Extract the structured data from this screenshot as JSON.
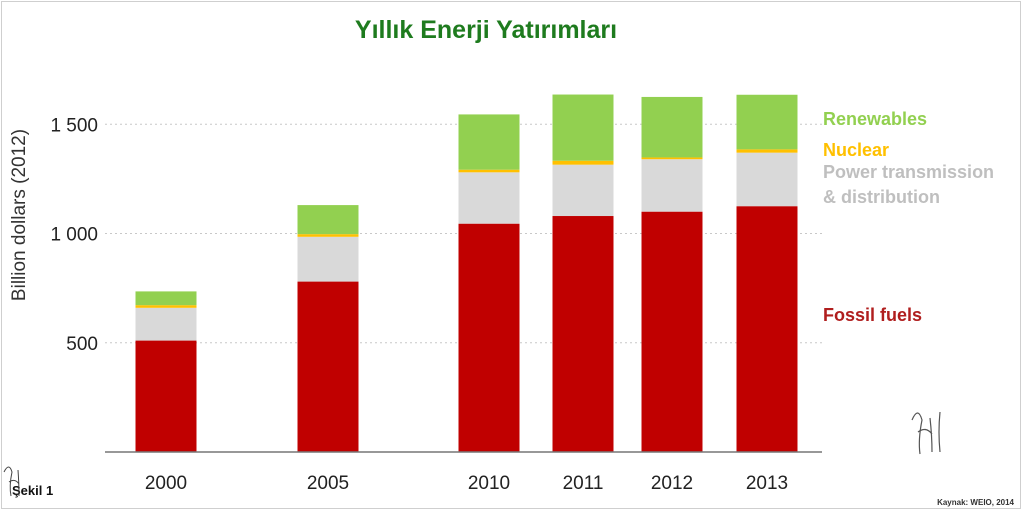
{
  "chart_data": {
    "type": "bar",
    "stacked": true,
    "title": "Yıllık Enerji Yatırımları",
    "ylabel": "Billion dollars (2012)",
    "ylim": [
      0,
      1650
    ],
    "yticks": [
      500,
      1000,
      1500
    ],
    "ytick_labels": [
      "500",
      "1 000",
      "1 500"
    ],
    "grid": true,
    "legend_position": "right",
    "categories": [
      "2000",
      "2005",
      "2010",
      "2011",
      "2012",
      "2013"
    ],
    "series": [
      {
        "name": "Fossil fuels",
        "color": "#c00000",
        "values": [
          510,
          780,
          1045,
          1080,
          1100,
          1125
        ]
      },
      {
        "name": "Power transmission & distribution",
        "color": "#d9d9d9",
        "values": [
          150,
          205,
          235,
          235,
          240,
          245
        ]
      },
      {
        "name": "Nuclear",
        "color": "#ffc000",
        "values": [
          12,
          12,
          12,
          18,
          8,
          15
        ]
      },
      {
        "name": "Renewables",
        "color": "#92d050",
        "values": [
          63,
          133,
          253,
          303,
          277,
          250
        ]
      }
    ],
    "legend_labels": {
      "renewables": "Renewables",
      "nuclear": "Nuclear",
      "power_line1": "Power transmission",
      "power_line2": "& distribution",
      "fossil": "Fossil fuels"
    },
    "legend_colors": {
      "renewables": "#92d050",
      "nuclear": "#ffc000",
      "power": "#bfbfbf",
      "fossil": "#b01e1e"
    },
    "title_color": "#1e7b1e",
    "figure_label": "Şekil 1",
    "source": "Kaynak: WEIO, 2014"
  }
}
